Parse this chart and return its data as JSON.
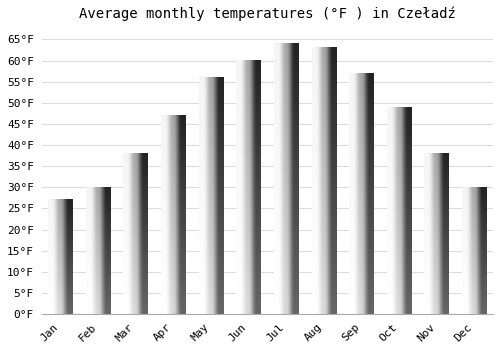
{
  "title": "Average monthly temperatures (°F ) in Czeładź",
  "months": [
    "Jan",
    "Feb",
    "Mar",
    "Apr",
    "May",
    "Jun",
    "Jul",
    "Aug",
    "Sep",
    "Oct",
    "Nov",
    "Dec"
  ],
  "values": [
    27,
    30,
    38,
    47,
    56,
    60,
    64,
    63,
    57,
    49,
    38,
    30
  ],
  "bar_color_bottom": "#F5A623",
  "bar_color_top": "#FFD966",
  "background_color": "#FFFFFF",
  "grid_color": "#DDDDDD",
  "ylim": [
    0,
    68
  ],
  "yticks": [
    0,
    5,
    10,
    15,
    20,
    25,
    30,
    35,
    40,
    45,
    50,
    55,
    60,
    65
  ],
  "title_fontsize": 10,
  "tick_fontsize": 8,
  "font_family": "monospace"
}
